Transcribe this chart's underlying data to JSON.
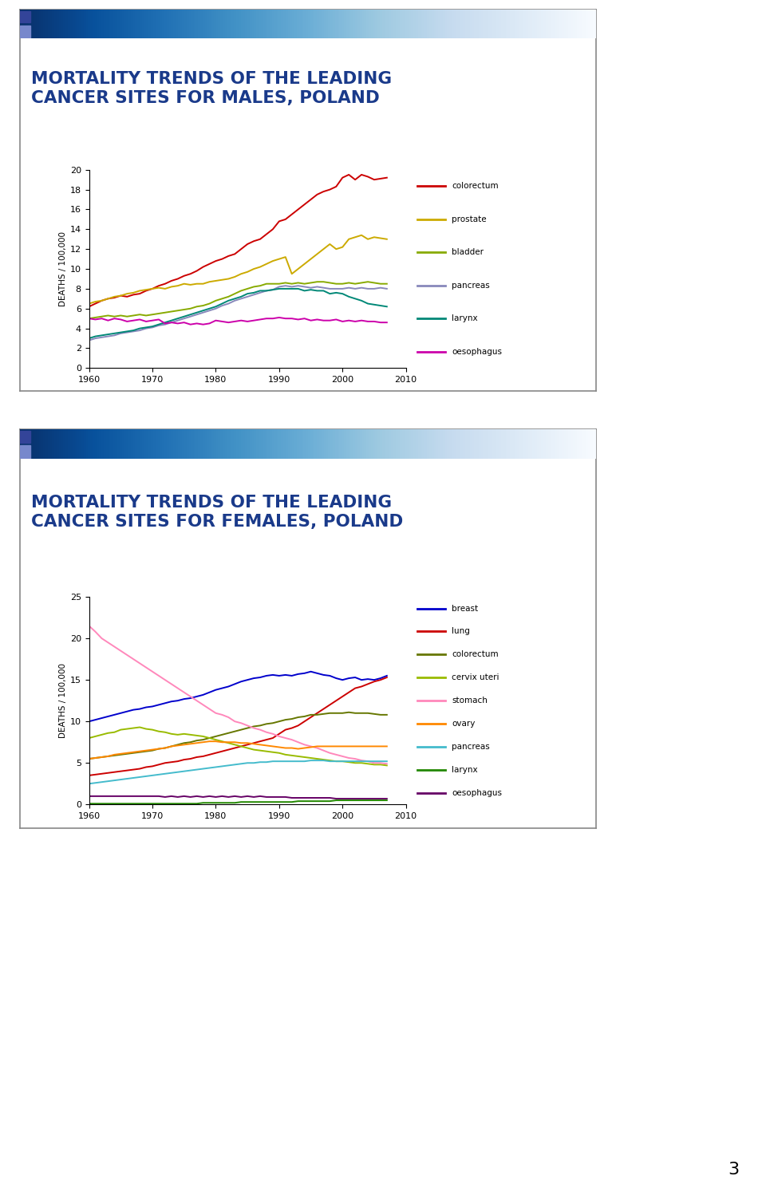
{
  "title1": "MORTALITY TRENDS OF THE LEADING\nCANCER SITES FOR MALES, POLAND",
  "title2": "MORTALITY TRENDS OF THE LEADING\nCANCER SITES FOR FEMALES, POLAND",
  "ylabel": "DEATHS / 100,000",
  "years": [
    1960,
    1961,
    1962,
    1963,
    1964,
    1965,
    1966,
    1967,
    1968,
    1969,
    1970,
    1971,
    1972,
    1973,
    1974,
    1975,
    1976,
    1977,
    1978,
    1979,
    1980,
    1981,
    1982,
    1983,
    1984,
    1985,
    1986,
    1987,
    1988,
    1989,
    1990,
    1991,
    1992,
    1993,
    1994,
    1995,
    1996,
    1997,
    1998,
    1999,
    2000,
    2001,
    2002,
    2003,
    2004,
    2005,
    2006,
    2007
  ],
  "males": {
    "colorectum": [
      6.2,
      6.5,
      6.8,
      7.0,
      7.1,
      7.3,
      7.2,
      7.4,
      7.5,
      7.8,
      8.0,
      8.3,
      8.5,
      8.8,
      9.0,
      9.3,
      9.5,
      9.8,
      10.2,
      10.5,
      10.8,
      11.0,
      11.3,
      11.5,
      12.0,
      12.5,
      12.8,
      13.0,
      13.5,
      14.0,
      14.8,
      15.0,
      15.5,
      16.0,
      16.5,
      17.0,
      17.5,
      17.8,
      18.0,
      18.3,
      19.2,
      19.5,
      19.0,
      19.5,
      19.3,
      19.0,
      19.1,
      19.2
    ],
    "prostate": [
      6.5,
      6.7,
      6.8,
      7.0,
      7.2,
      7.3,
      7.5,
      7.6,
      7.8,
      7.9,
      8.0,
      8.1,
      8.0,
      8.2,
      8.3,
      8.5,
      8.4,
      8.5,
      8.5,
      8.7,
      8.8,
      8.9,
      9.0,
      9.2,
      9.5,
      9.7,
      10.0,
      10.2,
      10.5,
      10.8,
      11.0,
      11.2,
      9.5,
      10.0,
      10.5,
      11.0,
      11.5,
      12.0,
      12.5,
      12.0,
      12.2,
      13.0,
      13.2,
      13.4,
      13.0,
      13.2,
      13.1,
      13.0
    ],
    "bladder": [
      5.0,
      5.1,
      5.2,
      5.3,
      5.2,
      5.3,
      5.2,
      5.3,
      5.4,
      5.3,
      5.4,
      5.5,
      5.6,
      5.7,
      5.8,
      5.9,
      6.0,
      6.2,
      6.3,
      6.5,
      6.8,
      7.0,
      7.2,
      7.5,
      7.8,
      8.0,
      8.2,
      8.3,
      8.5,
      8.5,
      8.5,
      8.6,
      8.5,
      8.6,
      8.5,
      8.6,
      8.7,
      8.7,
      8.6,
      8.5,
      8.5,
      8.6,
      8.5,
      8.6,
      8.7,
      8.6,
      8.5,
      8.5
    ],
    "pancreas": [
      2.8,
      3.0,
      3.1,
      3.2,
      3.3,
      3.5,
      3.6,
      3.7,
      3.8,
      4.0,
      4.1,
      4.3,
      4.4,
      4.6,
      4.8,
      5.0,
      5.2,
      5.4,
      5.6,
      5.8,
      6.0,
      6.3,
      6.5,
      6.8,
      7.0,
      7.2,
      7.4,
      7.6,
      7.8,
      7.9,
      8.2,
      8.3,
      8.2,
      8.3,
      8.2,
      8.1,
      8.2,
      8.1,
      8.0,
      8.0,
      8.0,
      8.1,
      8.0,
      8.1,
      8.0,
      8.0,
      8.1,
      8.0
    ],
    "larynx": [
      3.0,
      3.2,
      3.3,
      3.4,
      3.5,
      3.6,
      3.7,
      3.8,
      4.0,
      4.1,
      4.2,
      4.4,
      4.6,
      4.8,
      5.0,
      5.2,
      5.4,
      5.6,
      5.8,
      6.0,
      6.2,
      6.5,
      6.8,
      7.0,
      7.2,
      7.5,
      7.6,
      7.8,
      7.8,
      7.9,
      8.0,
      8.0,
      8.0,
      8.0,
      7.8,
      7.9,
      7.8,
      7.8,
      7.5,
      7.6,
      7.5,
      7.2,
      7.0,
      6.8,
      6.5,
      6.4,
      6.3,
      6.2
    ],
    "oesophagus": [
      5.0,
      4.9,
      5.0,
      4.8,
      5.0,
      4.9,
      4.7,
      4.8,
      4.9,
      4.7,
      4.8,
      4.9,
      4.5,
      4.6,
      4.5,
      4.6,
      4.4,
      4.5,
      4.4,
      4.5,
      4.8,
      4.7,
      4.6,
      4.7,
      4.8,
      4.7,
      4.8,
      4.9,
      5.0,
      5.0,
      5.1,
      5.0,
      5.0,
      4.9,
      5.0,
      4.8,
      4.9,
      4.8,
      4.8,
      4.9,
      4.7,
      4.8,
      4.7,
      4.8,
      4.7,
      4.7,
      4.6,
      4.6
    ]
  },
  "males_colors": {
    "colorectum": "#cc0000",
    "prostate": "#ccaa00",
    "bladder": "#88aa00",
    "pancreas": "#8888bb",
    "larynx": "#008877",
    "oesophagus": "#cc00aa"
  },
  "females": {
    "breast": [
      10.0,
      10.2,
      10.4,
      10.6,
      10.8,
      11.0,
      11.2,
      11.4,
      11.5,
      11.7,
      11.8,
      12.0,
      12.2,
      12.4,
      12.5,
      12.7,
      12.8,
      13.0,
      13.2,
      13.5,
      13.8,
      14.0,
      14.2,
      14.5,
      14.8,
      15.0,
      15.2,
      15.3,
      15.5,
      15.6,
      15.5,
      15.6,
      15.5,
      15.7,
      15.8,
      16.0,
      15.8,
      15.6,
      15.5,
      15.2,
      15.0,
      15.2,
      15.3,
      15.0,
      15.1,
      15.0,
      15.2,
      15.5
    ],
    "lung": [
      3.5,
      3.6,
      3.7,
      3.8,
      3.9,
      4.0,
      4.1,
      4.2,
      4.3,
      4.5,
      4.6,
      4.8,
      5.0,
      5.1,
      5.2,
      5.4,
      5.5,
      5.7,
      5.8,
      6.0,
      6.2,
      6.4,
      6.6,
      6.8,
      7.0,
      7.2,
      7.4,
      7.6,
      7.8,
      8.0,
      8.5,
      9.0,
      9.2,
      9.5,
      10.0,
      10.5,
      11.0,
      11.5,
      12.0,
      12.5,
      13.0,
      13.5,
      14.0,
      14.2,
      14.5,
      14.8,
      15.0,
      15.3
    ],
    "colorectum": [
      5.5,
      5.6,
      5.7,
      5.8,
      5.9,
      6.0,
      6.1,
      6.2,
      6.3,
      6.4,
      6.5,
      6.7,
      6.8,
      7.0,
      7.2,
      7.4,
      7.5,
      7.7,
      7.8,
      8.0,
      8.2,
      8.4,
      8.6,
      8.8,
      9.0,
      9.2,
      9.4,
      9.5,
      9.7,
      9.8,
      10.0,
      10.2,
      10.3,
      10.5,
      10.6,
      10.8,
      10.8,
      10.9,
      11.0,
      11.0,
      11.0,
      11.1,
      11.0,
      11.0,
      11.0,
      10.9,
      10.8,
      10.8
    ],
    "cervix_uteri": [
      8.0,
      8.2,
      8.4,
      8.6,
      8.7,
      9.0,
      9.1,
      9.2,
      9.3,
      9.1,
      9.0,
      8.8,
      8.7,
      8.5,
      8.4,
      8.5,
      8.4,
      8.3,
      8.2,
      8.0,
      7.8,
      7.6,
      7.4,
      7.2,
      7.0,
      6.8,
      6.6,
      6.5,
      6.4,
      6.3,
      6.2,
      6.0,
      5.9,
      5.8,
      5.7,
      5.6,
      5.5,
      5.4,
      5.3,
      5.2,
      5.2,
      5.1,
      5.0,
      5.0,
      4.9,
      4.8,
      4.8,
      4.7
    ],
    "stomach": [
      21.5,
      20.8,
      20.0,
      19.5,
      19.0,
      18.5,
      18.0,
      17.5,
      17.0,
      16.5,
      16.0,
      15.5,
      15.0,
      14.5,
      14.0,
      13.5,
      13.0,
      12.5,
      12.0,
      11.5,
      11.0,
      10.8,
      10.5,
      10.0,
      9.8,
      9.5,
      9.2,
      9.0,
      8.7,
      8.5,
      8.2,
      8.0,
      7.8,
      7.5,
      7.2,
      7.0,
      6.8,
      6.5,
      6.2,
      6.0,
      5.8,
      5.6,
      5.5,
      5.3,
      5.2,
      5.0,
      5.0,
      4.9
    ],
    "ovary": [
      5.5,
      5.6,
      5.7,
      5.8,
      6.0,
      6.1,
      6.2,
      6.3,
      6.4,
      6.5,
      6.6,
      6.7,
      6.8,
      7.0,
      7.1,
      7.2,
      7.3,
      7.4,
      7.5,
      7.6,
      7.6,
      7.5,
      7.5,
      7.5,
      7.4,
      7.4,
      7.3,
      7.2,
      7.1,
      7.0,
      6.9,
      6.8,
      6.8,
      6.7,
      6.8,
      6.9,
      7.0,
      7.0,
      7.0,
      7.0,
      7.0,
      7.0,
      7.0,
      7.0,
      7.0,
      7.0,
      7.0,
      7.0
    ],
    "pancreas": [
      2.5,
      2.6,
      2.7,
      2.8,
      2.9,
      3.0,
      3.1,
      3.2,
      3.3,
      3.4,
      3.5,
      3.6,
      3.7,
      3.8,
      3.9,
      4.0,
      4.1,
      4.2,
      4.3,
      4.4,
      4.5,
      4.6,
      4.7,
      4.8,
      4.9,
      5.0,
      5.0,
      5.1,
      5.1,
      5.2,
      5.2,
      5.2,
      5.2,
      5.2,
      5.2,
      5.3,
      5.3,
      5.3,
      5.2,
      5.2,
      5.2,
      5.2,
      5.2,
      5.2,
      5.2,
      5.2,
      5.2,
      5.2
    ],
    "larynx": [
      0.1,
      0.1,
      0.1,
      0.1,
      0.1,
      0.1,
      0.1,
      0.1,
      0.1,
      0.1,
      0.1,
      0.1,
      0.1,
      0.1,
      0.1,
      0.1,
      0.1,
      0.1,
      0.2,
      0.2,
      0.2,
      0.2,
      0.2,
      0.2,
      0.3,
      0.3,
      0.3,
      0.3,
      0.3,
      0.3,
      0.3,
      0.3,
      0.3,
      0.4,
      0.4,
      0.4,
      0.4,
      0.4,
      0.4,
      0.5,
      0.5,
      0.5,
      0.5,
      0.5,
      0.5,
      0.5,
      0.5,
      0.5
    ],
    "oesophagus": [
      1.0,
      1.0,
      1.0,
      1.0,
      1.0,
      1.0,
      1.0,
      1.0,
      1.0,
      1.0,
      1.0,
      1.0,
      0.9,
      1.0,
      0.9,
      1.0,
      0.9,
      1.0,
      0.9,
      1.0,
      0.9,
      1.0,
      0.9,
      1.0,
      0.9,
      1.0,
      0.9,
      1.0,
      0.9,
      0.9,
      0.9,
      0.9,
      0.8,
      0.8,
      0.8,
      0.8,
      0.8,
      0.8,
      0.8,
      0.7,
      0.7,
      0.7,
      0.7,
      0.7,
      0.7,
      0.7,
      0.7,
      0.7
    ]
  },
  "females_colors": {
    "breast": "#0000cc",
    "lung": "#cc0000",
    "colorectum": "#667700",
    "cervix_uteri": "#99bb00",
    "stomach": "#ff88bb",
    "ovary": "#ff8800",
    "pancreas": "#44bbcc",
    "larynx": "#228800",
    "oesophagus": "#660066"
  },
  "title_color": "#1a3a8a",
  "page_bg": "#ffffff",
  "slide_border": "#555555",
  "header_bar_color": "#3355aa"
}
